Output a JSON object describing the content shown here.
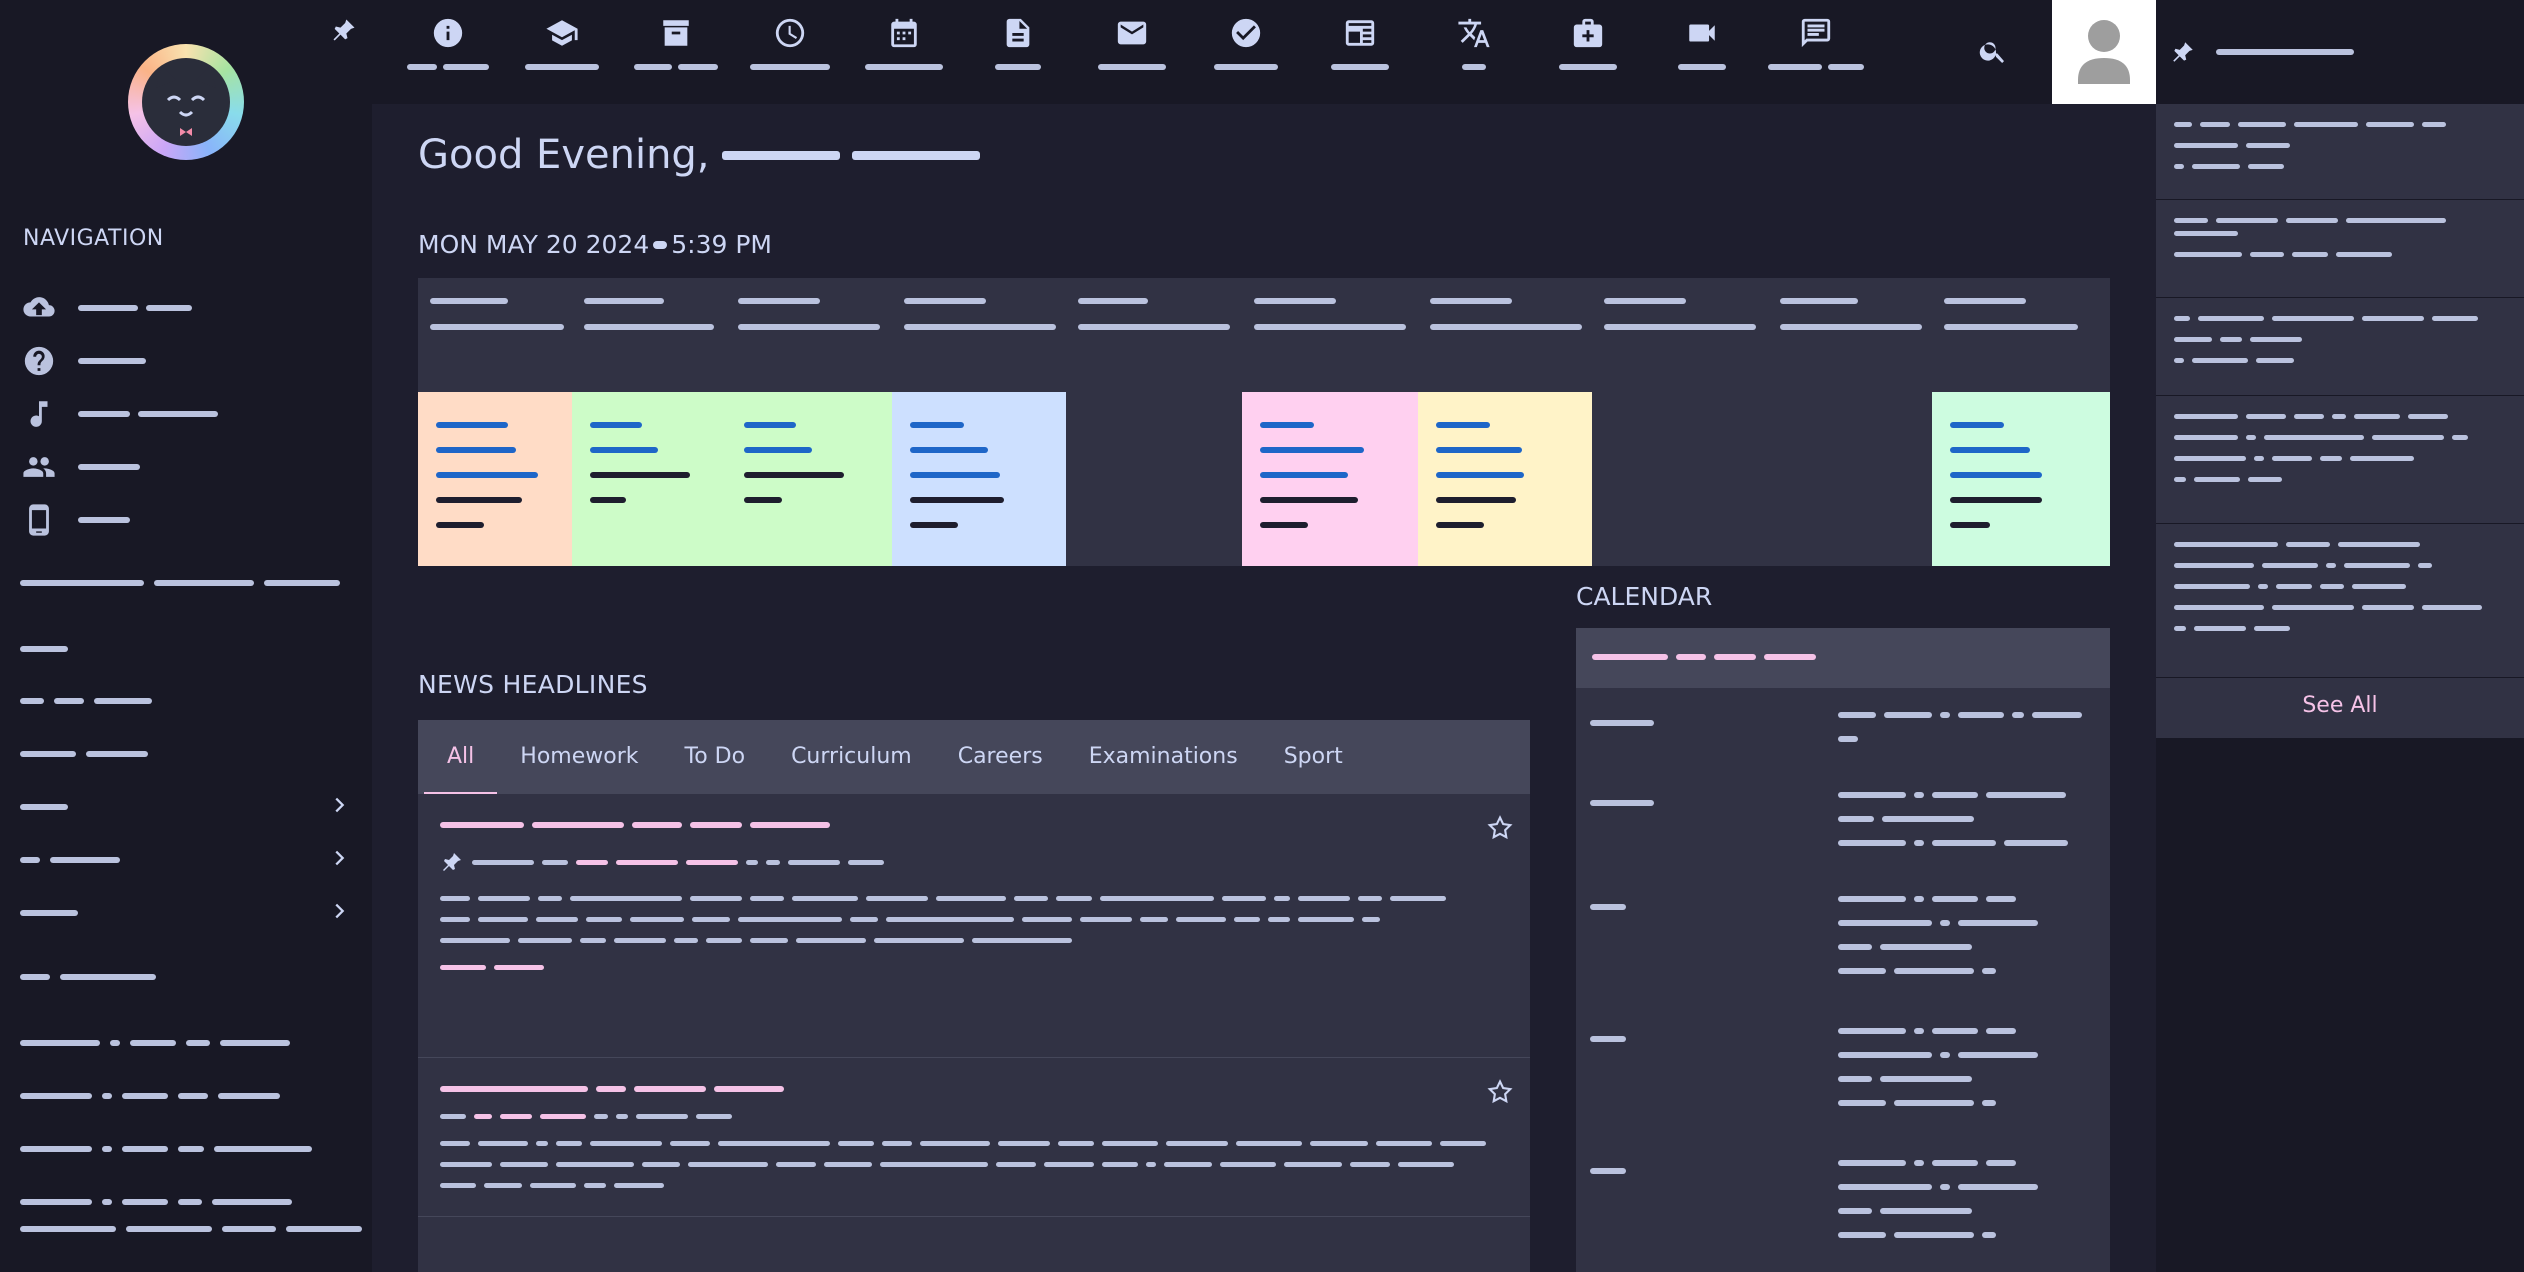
{
  "sidebar": {
    "nav_title": "NAVIGATION",
    "items": [
      {
        "icon": "cloud-upload-icon"
      },
      {
        "icon": "help-icon"
      },
      {
        "icon": "music-note-icon"
      },
      {
        "icon": "people-icon"
      },
      {
        "icon": "phone-icon"
      }
    ]
  },
  "topbar": {
    "icons": [
      "info-icon",
      "school-icon",
      "archive-icon",
      "clock-icon",
      "calendar-icon",
      "document-icon",
      "mail-icon",
      "check-circle-icon",
      "newspaper-icon",
      "translate-icon",
      "medical-bag-icon",
      "video-icon",
      "message-icon"
    ]
  },
  "main": {
    "greeting": "Good Evening,",
    "date": "MON MAY 20 2024",
    "time": "5:39 PM"
  },
  "news": {
    "title": "NEWS HEADLINES",
    "tabs": [
      "All",
      "Homework",
      "To Do",
      "Curriculum",
      "Careers",
      "Examinations",
      "Sport"
    ],
    "active_tab": "All"
  },
  "calendar": {
    "title": "CALENDAR"
  },
  "notifications": {
    "see_all": "See All"
  },
  "colors": {
    "background": "#1e1e2e",
    "sidebar": "#181825",
    "surface": "#313244",
    "surface_light": "#45475a",
    "accent_pink": "#f5c2e7",
    "link_blue": "#1e66c8",
    "cell_peach": "#ffdcc6",
    "cell_green": "#cdfcc8",
    "cell_blue": "#cde0ff",
    "cell_pink": "#ffd0f0",
    "cell_yellow": "#fff3c8",
    "cell_mint": "#cdfce0"
  }
}
